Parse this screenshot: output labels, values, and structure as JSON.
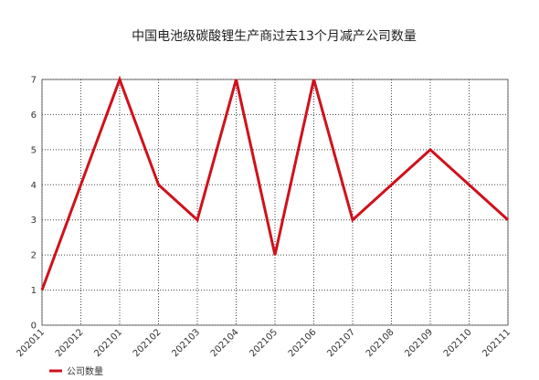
{
  "chart_data": {
    "type": "line",
    "title": "中国电池级碳酸锂生产商过去13个月减产公司数量",
    "categories": [
      "202011",
      "202012",
      "202101",
      "202102",
      "202103",
      "202104",
      "202105",
      "202106",
      "202107",
      "202108",
      "202109",
      "202110",
      "202111"
    ],
    "series": [
      {
        "name": "公司数量",
        "color": "#d0111b",
        "values": [
          1,
          4,
          7,
          4,
          3,
          7,
          2,
          7,
          3,
          4,
          5,
          4,
          3
        ]
      }
    ],
    "ylim": [
      0,
      7
    ],
    "yticks": [
      0,
      1,
      2,
      3,
      4,
      5,
      6,
      7
    ],
    "grid": true,
    "legend": "bottom-left"
  }
}
